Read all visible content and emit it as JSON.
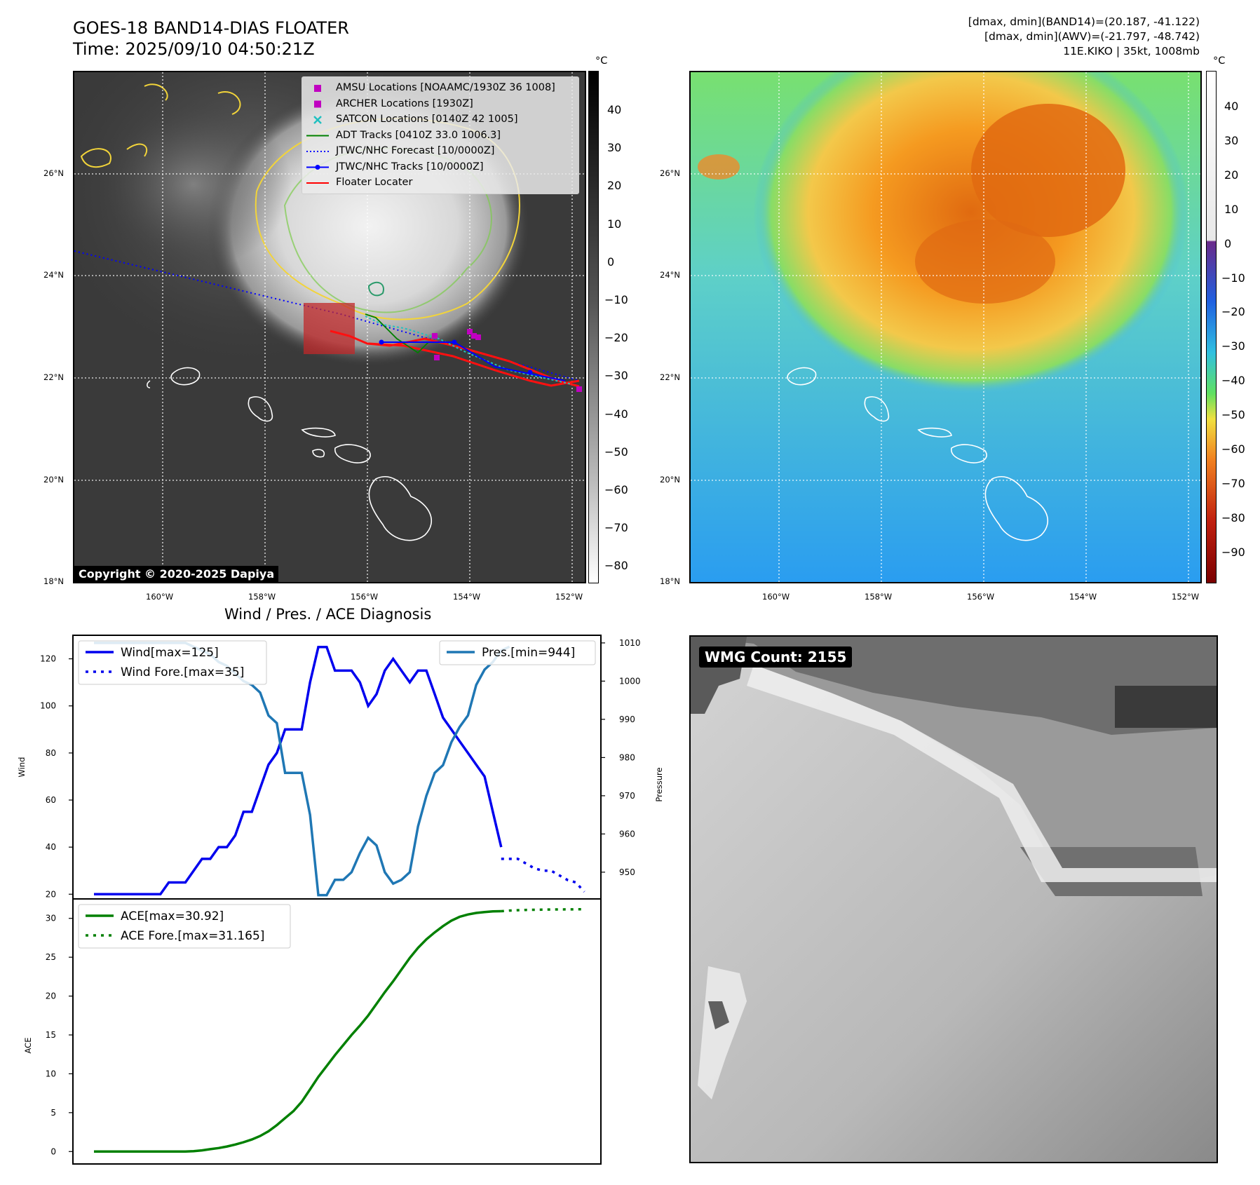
{
  "header": {
    "title": "GOES-18 BAND14-DIAS FLOATER",
    "time": "Time: 2025/09/10 04:50:21Z",
    "info_band14": "[dmax, dmin](BAND14)=(20.187, -41.122)",
    "info_awv": "[dmax, dmin](AWV)=(-21.797, -48.742)",
    "storm": "11E.KIKO | 35kt, 1008mb"
  },
  "map_ir": {
    "lat_labels": [
      "26°N",
      "24°N",
      "22°N",
      "20°N",
      "18°N"
    ],
    "lon_labels": [
      "160°W",
      "158°W",
      "156°W",
      "154°W",
      "152°W"
    ],
    "copyright": "Copyright © 2020-2025 Dapiya",
    "legend": [
      {
        "label": "AMSU Locations [NOAAMC/1930Z 36 1008]",
        "color": "#c000c0",
        "icon": "square-marker"
      },
      {
        "label": "ARCHER Locations [1930Z]",
        "color": "#c000c0",
        "icon": "square-marker"
      },
      {
        "label": "SATCON Locations [0140Z 42 1005]",
        "color": "#20c0c0",
        "icon": "x-marker"
      },
      {
        "label": "ADT Tracks [0410Z 33.0 1006.3]",
        "color": "#008000",
        "icon": "solid-line"
      },
      {
        "label": "JTWC/NHC Forecast [10/0000Z]",
        "color": "#0000ff",
        "icon": "dotted-line"
      },
      {
        "label": "JTWC/NHC Tracks [10/0000Z]",
        "color": "#0000ff",
        "icon": "dot-line"
      },
      {
        "label": "Floater Locater",
        "color": "#ff0000",
        "icon": "solid-line"
      }
    ],
    "colorbar_unit": "°C",
    "colorbar_ticks": [
      "40",
      "30",
      "20",
      "10",
      "0",
      "−10",
      "−20",
      "−30",
      "−40",
      "−50",
      "−60",
      "−70",
      "−80"
    ]
  },
  "map_awv": {
    "lat_labels": [
      "26°N",
      "24°N",
      "22°N",
      "20°N",
      "18°N"
    ],
    "lon_labels": [
      "160°W",
      "158°W",
      "156°W",
      "154°W",
      "152°W"
    ],
    "colorbar_unit": "°C",
    "colorbar_ticks": [
      "40",
      "30",
      "20",
      "10",
      "0",
      "−10",
      "−20",
      "−30",
      "−40",
      "−50",
      "−60",
      "−70",
      "−80",
      "−90"
    ]
  },
  "wmg": {
    "label": "WMG Count: 2155"
  },
  "chart_data": [
    {
      "type": "line",
      "title": "Wind / Pres. / ACE Diagnosis",
      "ylabel": "Wind",
      "ylabel_right": "Pressure",
      "ylim": [
        18,
        130
      ],
      "ylim_right": [
        943,
        1012
      ],
      "yticks": [
        20,
        40,
        60,
        80,
        100,
        120
      ],
      "yticks_right": [
        950,
        960,
        970,
        980,
        990,
        1000,
        1010
      ],
      "series": [
        {
          "name": "Wind[max=125]",
          "color": "#0000ee",
          "style": "solid",
          "x": [
            0,
            1,
            2,
            3,
            4,
            5,
            6,
            7,
            8,
            9,
            10,
            11,
            12,
            13,
            14,
            15,
            16,
            17,
            18,
            19,
            20,
            21,
            22,
            23,
            24,
            25,
            26,
            27,
            28,
            29,
            30,
            31,
            32,
            33,
            34,
            35,
            36,
            37,
            38,
            39,
            40,
            41,
            42,
            43,
            44,
            45,
            46,
            47,
            48,
            49
          ],
          "values": [
            20,
            20,
            20,
            20,
            20,
            20,
            20,
            20,
            20,
            25,
            25,
            25,
            30,
            35,
            35,
            40,
            40,
            45,
            55,
            55,
            65,
            75,
            80,
            90,
            90,
            90,
            110,
            125,
            125,
            115,
            115,
            115,
            110,
            100,
            105,
            115,
            120,
            115,
            110,
            115,
            115,
            105,
            95,
            90,
            85,
            80,
            75,
            70,
            55,
            40
          ]
        },
        {
          "name": "Wind Fore.[max=35]",
          "color": "#0000ee",
          "style": "dotted",
          "x": [
            49,
            50,
            51,
            52,
            53,
            54,
            55,
            56,
            57,
            58,
            59
          ],
          "values": [
            35,
            35,
            35,
            33,
            31,
            30,
            30,
            28,
            26,
            25,
            21
          ]
        },
        {
          "name": "Pres.[min=944]",
          "color": "#1f77b4",
          "style": "solid",
          "axis": "right",
          "x": [
            0,
            1,
            2,
            3,
            4,
            5,
            6,
            7,
            8,
            9,
            10,
            11,
            12,
            13,
            14,
            15,
            16,
            17,
            18,
            19,
            20,
            21,
            22,
            23,
            24,
            25,
            26,
            27,
            28,
            29,
            30,
            31,
            32,
            33,
            34,
            35,
            36,
            37,
            38,
            39,
            40,
            41,
            42,
            43,
            44,
            45,
            46,
            47,
            48,
            49,
            50
          ],
          "values": [
            1010,
            1010,
            1010,
            1010,
            1010,
            1010,
            1010,
            1010,
            1010,
            1010,
            1010,
            1010,
            1009,
            1008,
            1007,
            1005,
            1004,
            1002,
            1000,
            999,
            997,
            991,
            989,
            976,
            976,
            976,
            965,
            944,
            944,
            948,
            948,
            950,
            955,
            959,
            957,
            950,
            947,
            948,
            950,
            962,
            970,
            976,
            978,
            984,
            988,
            991,
            999,
            1003,
            1005,
            1008,
            1009
          ]
        }
      ]
    },
    {
      "type": "line",
      "ylabel": "ACE",
      "ylim": [
        -1.6,
        32.5
      ],
      "yticks": [
        0,
        5,
        10,
        15,
        20,
        25,
        30
      ],
      "series": [
        {
          "name": "ACE[max=30.92]",
          "color": "#008000",
          "style": "solid",
          "x": [
            0,
            1,
            2,
            3,
            4,
            5,
            6,
            7,
            8,
            9,
            10,
            11,
            12,
            13,
            14,
            15,
            16,
            17,
            18,
            19,
            20,
            21,
            22,
            23,
            24,
            25,
            26,
            27,
            28,
            29,
            30,
            31,
            32,
            33,
            34,
            35,
            36,
            37,
            38,
            39,
            40,
            41,
            42,
            43,
            44,
            45,
            46,
            47,
            48,
            49
          ],
          "values": [
            0,
            0,
            0,
            0,
            0,
            0,
            0,
            0,
            0,
            0,
            0,
            0,
            0.05,
            0.15,
            0.3,
            0.45,
            0.65,
            0.9,
            1.2,
            1.55,
            2.0,
            2.6,
            3.4,
            4.3,
            5.2,
            6.4,
            8.0,
            9.6,
            11.0,
            12.4,
            13.7,
            15.0,
            16.2,
            17.5,
            19.0,
            20.5,
            21.9,
            23.4,
            24.9,
            26.2,
            27.3,
            28.2,
            29.0,
            29.7,
            30.2,
            30.5,
            30.7,
            30.8,
            30.9,
            30.92
          ]
        },
        {
          "name": "ACE Fore.[max=31.165]",
          "color": "#008000",
          "style": "dotted",
          "x": [
            49,
            50,
            51,
            52,
            53,
            54,
            55,
            56,
            57,
            58,
            59
          ],
          "values": [
            30.92,
            31.0,
            31.05,
            31.08,
            31.1,
            31.12,
            31.14,
            31.15,
            31.16,
            31.165,
            31.165
          ]
        }
      ]
    }
  ]
}
